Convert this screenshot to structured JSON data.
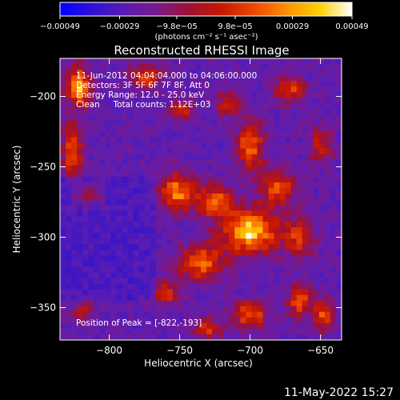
{
  "chart_data": {
    "type": "heatmap",
    "title": "Reconstructed RHESSI Image",
    "xlabel": "Heliocentric X (arcsec)",
    "ylabel": "Heliocentric Y (arcsec)",
    "xlim": [
      -835,
      -635
    ],
    "ylim": [
      -373,
      -173
    ],
    "x_ticks": [
      -800,
      -750,
      -700,
      -650
    ],
    "y_ticks": [
      -350,
      -300,
      -250,
      -200
    ],
    "x_tick_labels": [
      "−800",
      "−750",
      "−700",
      "−650"
    ],
    "y_tick_labels": [
      "−350",
      "−300",
      "−250",
      "−200"
    ],
    "colorbar": {
      "min": -0.00049,
      "max": 0.00049,
      "tick_values": [
        -0.00049,
        -0.00029,
        -9.8e-05,
        9.8e-05,
        0.00029,
        0.00049
      ],
      "tick_labels": [
        "−0.00049",
        "−0.00029",
        "−9.8e−05",
        "9.8e−05",
        "0.00029",
        "0.00049"
      ],
      "units_label": "(photons cm⁻² s⁻¹ asec⁻²)",
      "colors": [
        "#0000ff",
        "#3010d8",
        "#5a1ab0",
        "#7a1a8c",
        "#a01030",
        "#c81800",
        "#ee4800",
        "#ff9000",
        "#ffd000",
        "#ffffff"
      ]
    },
    "annotations": [
      "11-Jun-2012 04:04:04.000 to 04:06:00.000",
      "Detectors: 3F 5F 6F 7F 8F, Att 0",
      "Energy Range: 12.0 - 25.0 keV",
      "Clean     Total counts: 1.12E+03"
    ],
    "peak": {
      "label": "Position of Peak = [-822,-193]",
      "x": -822,
      "y": -193
    },
    "sources": [
      {
        "x": -700,
        "y": -296,
        "sx": 14,
        "sy": 11,
        "a": 1.0
      },
      {
        "x": -725,
        "y": -275,
        "sx": 9,
        "sy": 8,
        "a": 0.75
      },
      {
        "x": -752,
        "y": -268,
        "sx": 9,
        "sy": 10,
        "a": 0.8
      },
      {
        "x": -735,
        "y": -318,
        "sx": 12,
        "sy": 9,
        "a": 0.75
      },
      {
        "x": -700,
        "y": -235,
        "sx": 7,
        "sy": 12,
        "a": 0.75
      },
      {
        "x": -680,
        "y": -265,
        "sx": 10,
        "sy": 9,
        "a": 0.65
      },
      {
        "x": -665,
        "y": -300,
        "sx": 8,
        "sy": 10,
        "a": 0.55
      },
      {
        "x": -822,
        "y": -193,
        "sx": 6,
        "sy": 10,
        "a": 0.95
      },
      {
        "x": -826,
        "y": -238,
        "sx": 5,
        "sy": 14,
        "a": 0.7
      },
      {
        "x": -815,
        "y": -270,
        "sx": 8,
        "sy": 6,
        "a": 0.45
      },
      {
        "x": -775,
        "y": -186,
        "sx": 9,
        "sy": 7,
        "a": 0.6
      },
      {
        "x": -748,
        "y": -210,
        "sx": 6,
        "sy": 5,
        "a": 0.55
      },
      {
        "x": -716,
        "y": -205,
        "sx": 6,
        "sy": 6,
        "a": 0.55
      },
      {
        "x": -672,
        "y": -195,
        "sx": 8,
        "sy": 7,
        "a": 0.6
      },
      {
        "x": -650,
        "y": -235,
        "sx": 6,
        "sy": 9,
        "a": 0.5
      },
      {
        "x": -700,
        "y": -355,
        "sx": 9,
        "sy": 7,
        "a": 0.7
      },
      {
        "x": -665,
        "y": -345,
        "sx": 6,
        "sy": 8,
        "a": 0.7
      },
      {
        "x": -648,
        "y": -355,
        "sx": 5,
        "sy": 8,
        "a": 0.65
      },
      {
        "x": -760,
        "y": -340,
        "sx": 7,
        "sy": 6,
        "a": 0.55
      },
      {
        "x": -820,
        "y": -352,
        "sx": 6,
        "sy": 5,
        "a": 0.4
      },
      {
        "x": -730,
        "y": -365,
        "sx": 7,
        "sy": 5,
        "a": 0.55
      }
    ]
  },
  "footer": {
    "date": "11-May-2022 15:27"
  }
}
